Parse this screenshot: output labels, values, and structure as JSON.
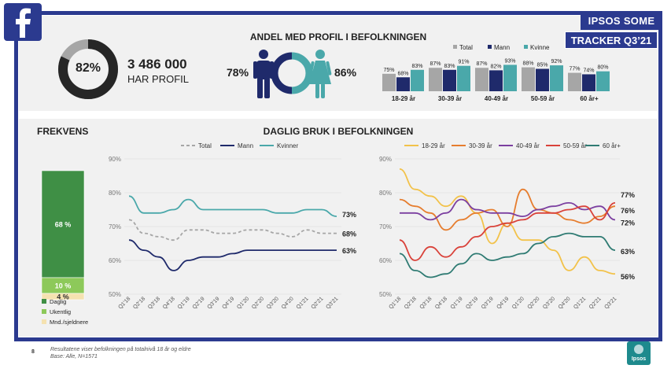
{
  "header": {
    "brand_line1": "IPSOS SOME",
    "brand_line2": "TRACKER Q3’21",
    "title": "ANDEL MED PROFIL I BEFOLKNINGEN"
  },
  "profile": {
    "pct": "82%",
    "pct_value": 82,
    "count": "3 486 000",
    "count_label": "HAR PROFIL",
    "men_pct": "78%",
    "women_pct": "86%"
  },
  "colors": {
    "total": "#a6a6a6",
    "men": "#1f2a6b",
    "women": "#4aa8aa",
    "frame": "#2b3a8f",
    "daily": "#3f8f45",
    "weekly": "#8dc95a",
    "monthly": "#f5e2b0",
    "a1829": "#f2c24a",
    "a3039": "#e67d2e",
    "a4049": "#7b3fa0",
    "a5059": "#d9423a",
    "a60": "#2f7b73"
  },
  "sections": {
    "frequency_title": "FREKVENS",
    "daily_title": "DAGLIG BRUK I BEFOLKNINGEN"
  },
  "footer": {
    "page": "8",
    "note_line1": "Resultatene viser befolkningen på totalnivå 18 år og eldre",
    "note_line2": "Base: Alle, N=1571",
    "logo": "Ipsos"
  },
  "chart_data": [
    {
      "id": "age_profile",
      "type": "bar",
      "title": "ANDEL MED PROFIL I BEFOLKNINGEN",
      "categories": [
        "18-29 år",
        "30-39 år",
        "40-49 år",
        "50-59 år",
        "60 år+"
      ],
      "series": [
        {
          "name": "Total",
          "values": [
            75,
            87,
            87,
            88,
            77
          ],
          "labels": [
            "75%",
            "87%",
            "87%",
            "88%",
            "77%"
          ]
        },
        {
          "name": "Mann",
          "values": [
            68,
            83,
            82,
            85,
            74
          ],
          "labels": [
            "68%",
            "83%",
            "82%",
            "85%",
            "74%"
          ]
        },
        {
          "name": "Kvinne",
          "values": [
            83,
            91,
            93,
            92,
            80
          ],
          "labels": [
            "83%",
            "91%",
            "93%",
            "92%",
            "80%"
          ]
        }
      ],
      "ylim": [
        0,
        100
      ]
    },
    {
      "id": "frequency",
      "type": "bar",
      "title": "FREKVENS",
      "stacked": true,
      "series": [
        {
          "name": "Daglig",
          "value": 68,
          "label": "68 %"
        },
        {
          "name": "Ukentlig",
          "value": 10,
          "label": "10 %"
        },
        {
          "name": "Mnd./sjeldnere",
          "value": 4,
          "label": "4 %"
        }
      ]
    },
    {
      "id": "daily_gender",
      "type": "line",
      "title": "DAGLIG BRUK I BEFOLKNINGEN",
      "x": [
        "Q1'18",
        "Q2'18",
        "Q3'18",
        "Q4'18",
        "Q1'19",
        "Q2'19",
        "Q3'19",
        "Q4'19",
        "Q1'20",
        "Q2'20",
        "Q3'20",
        "Q4'20",
        "Q1'21",
        "Q2'21",
        "Q3'21"
      ],
      "yticks": [
        "50%",
        "60%",
        "70%",
        "80%",
        "90%"
      ],
      "ylim": [
        50,
        90
      ],
      "series": [
        {
          "name": "Total",
          "values": [
            72,
            68,
            67,
            66,
            69,
            69,
            68,
            68,
            69,
            69,
            68,
            67,
            69,
            68,
            68
          ],
          "end_label": "68%"
        },
        {
          "name": "Mann",
          "values": [
            66,
            63,
            61,
            57,
            60,
            61,
            61,
            62,
            63,
            63,
            63,
            63,
            63,
            63,
            63
          ],
          "end_label": "63%"
        },
        {
          "name": "Kvinner",
          "values": [
            79,
            74,
            74,
            75,
            78,
            75,
            75,
            75,
            75,
            75,
            74,
            74,
            75,
            75,
            73
          ],
          "end_label": "73%"
        }
      ]
    },
    {
      "id": "daily_age",
      "type": "line",
      "x": [
        "Q1'18",
        "Q2'18",
        "Q3'18",
        "Q4'18",
        "Q1'19",
        "Q2'19",
        "Q3'19",
        "Q4'19",
        "Q1'20",
        "Q2'20",
        "Q3'20",
        "Q4'20",
        "Q1'21",
        "Q2'21",
        "Q3'21"
      ],
      "yticks": [
        "50%",
        "60%",
        "70%",
        "80%",
        "90%"
      ],
      "ylim": [
        50,
        90
      ],
      "series": [
        {
          "name": "18-29 år",
          "values": [
            87,
            81,
            79,
            76,
            79,
            74,
            65,
            71,
            66,
            66,
            63,
            57,
            61,
            57,
            56
          ],
          "end_label": "56%"
        },
        {
          "name": "30-39 år",
          "values": [
            78,
            76,
            74,
            69,
            72,
            74,
            75,
            70,
            81,
            75,
            74,
            72,
            71,
            73,
            76
          ],
          "end_label": "76%"
        },
        {
          "name": "40-49 år",
          "values": [
            74,
            74,
            72,
            74,
            78,
            75,
            74,
            74,
            73,
            75,
            76,
            77,
            75,
            76,
            72
          ],
          "end_label": "72%"
        },
        {
          "name": "50-59 år",
          "values": [
            66,
            60,
            64,
            61,
            64,
            67,
            70,
            71,
            72,
            74,
            74,
            75,
            76,
            72,
            77
          ],
          "end_label": "77%"
        },
        {
          "name": "60 år+",
          "values": [
            62,
            57,
            55,
            56,
            59,
            62,
            60,
            61,
            62,
            65,
            67,
            68,
            67,
            67,
            63
          ],
          "end_label": "63%"
        }
      ]
    }
  ]
}
